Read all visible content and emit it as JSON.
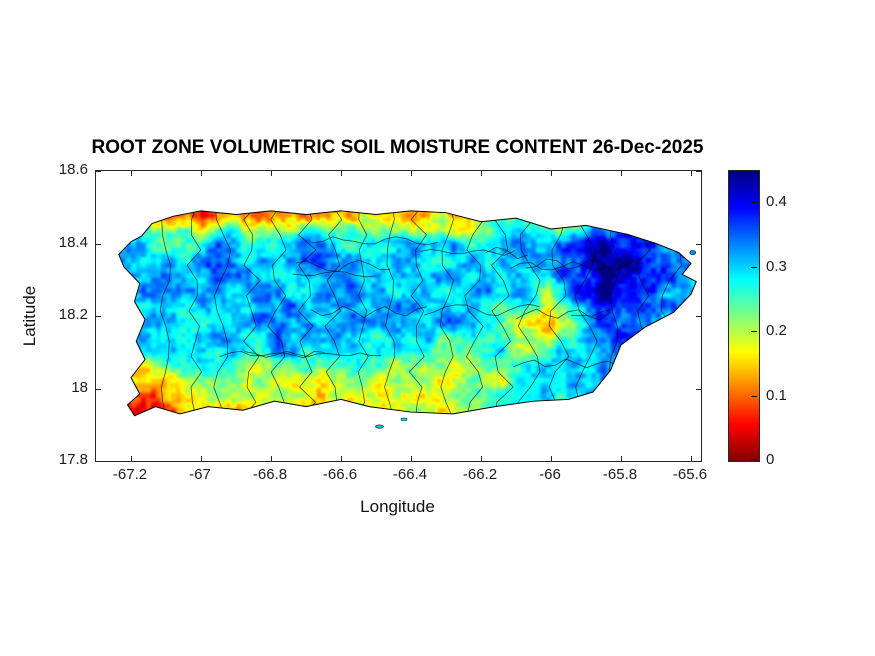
{
  "figure": {
    "title": "ROOT ZONE VOLUMETRIC SOIL MOISTURE CONTENT 26-Dec-2025",
    "xlabel": "Longitude",
    "ylabel": "Latitude",
    "background_color": "#ffffff",
    "axis_color": "#262626"
  },
  "axes": {
    "x_ticks": [
      -67.2,
      -67,
      -66.8,
      -66.6,
      -66.4,
      -66.2,
      -66,
      -65.8,
      -65.6
    ],
    "x_tick_labels": [
      "-67.2",
      "-67",
      "-66.8",
      "-66.6",
      "-66.4",
      "-66.2",
      "-66",
      "-65.8",
      "-65.6"
    ],
    "y_ticks": [
      18.6,
      18.4,
      18.2,
      18,
      17.8
    ],
    "y_tick_labels": [
      "18.6",
      "18.4",
      "18.2",
      "18",
      "17.8"
    ],
    "xlim": [
      -67.3,
      -65.57
    ],
    "ylim": [
      17.8,
      18.6
    ]
  },
  "colorbar": {
    "tick_values": [
      0,
      0.1,
      0.2,
      0.3,
      0.4
    ],
    "tick_labels": [
      "0",
      "0.1",
      "0.2",
      "0.3",
      "0.4"
    ],
    "vmin": 0,
    "vmax": 0.45,
    "colormap": "jet-reversed",
    "gradient_stops": [
      {
        "p": 0.0,
        "c": "#800000"
      },
      {
        "p": 0.125,
        "c": "#ff0000"
      },
      {
        "p": 0.375,
        "c": "#ffff00"
      },
      {
        "p": 0.625,
        "c": "#00ffff"
      },
      {
        "p": 0.875,
        "c": "#0000ff"
      },
      {
        "p": 1.0,
        "c": "#000080"
      }
    ]
  },
  "chart_data": {
    "type": "heatmap",
    "title": "ROOT ZONE VOLUMETRIC SOIL MOISTURE CONTENT 26-Dec-2025",
    "xlabel": "Longitude",
    "ylabel": "Latitude",
    "region": "Puerto Rico with municipality boundaries",
    "value_range": [
      0,
      0.45
    ],
    "xlim": [
      -67.3,
      -65.57
    ],
    "ylim": [
      17.8,
      18.6
    ],
    "grid": {
      "lon_start": -67.3,
      "lon_step": 0.076087,
      "lat_start": 18.55,
      "lat_step": -0.074444,
      "values": [
        [
          0.25,
          0.25,
          0.2,
          0.12,
          0.07,
          0.15,
          0.1,
          0.08,
          0.15,
          0.12,
          0.18,
          0.12,
          0.08,
          0.15,
          0.12,
          0.2,
          0.25,
          0.15,
          0.1,
          0.25,
          0.3,
          0.3,
          0.3,
          0.3
        ],
        [
          0.28,
          0.25,
          0.18,
          0.12,
          0.07,
          0.15,
          0.1,
          0.08,
          0.14,
          0.12,
          0.18,
          0.12,
          0.08,
          0.16,
          0.12,
          0.22,
          0.26,
          0.15,
          0.12,
          0.28,
          0.32,
          0.32,
          0.3,
          0.3
        ],
        [
          0.3,
          0.32,
          0.3,
          0.28,
          0.3,
          0.33,
          0.28,
          0.3,
          0.33,
          0.3,
          0.28,
          0.32,
          0.35,
          0.3,
          0.28,
          0.3,
          0.33,
          0.3,
          0.35,
          0.4,
          0.42,
          0.38,
          0.33,
          0.3
        ],
        [
          0.3,
          0.33,
          0.3,
          0.28,
          0.32,
          0.35,
          0.3,
          0.28,
          0.32,
          0.35,
          0.3,
          0.28,
          0.32,
          0.3,
          0.33,
          0.28,
          0.3,
          0.33,
          0.38,
          0.44,
          0.44,
          0.4,
          0.35,
          0.33
        ],
        [
          0.3,
          0.28,
          0.32,
          0.3,
          0.33,
          0.3,
          0.35,
          0.32,
          0.3,
          0.35,
          0.32,
          0.3,
          0.33,
          0.3,
          0.28,
          0.32,
          0.3,
          0.22,
          0.35,
          0.42,
          0.4,
          0.36,
          0.3,
          0.3
        ],
        [
          0.3,
          0.3,
          0.28,
          0.32,
          0.3,
          0.33,
          0.3,
          0.35,
          0.32,
          0.3,
          0.33,
          0.3,
          0.32,
          0.35,
          0.3,
          0.25,
          0.18,
          0.08,
          0.2,
          0.33,
          0.38,
          0.35,
          0.3,
          0.3
        ],
        [
          0.3,
          0.28,
          0.3,
          0.28,
          0.32,
          0.3,
          0.28,
          0.32,
          0.3,
          0.28,
          0.3,
          0.25,
          0.28,
          0.22,
          0.25,
          0.28,
          0.22,
          0.25,
          0.3,
          0.35,
          0.33,
          0.3,
          0.3,
          0.3
        ],
        [
          0.25,
          0.15,
          0.12,
          0.18,
          0.22,
          0.25,
          0.2,
          0.22,
          0.18,
          0.2,
          0.22,
          0.18,
          0.2,
          0.18,
          0.22,
          0.2,
          0.25,
          0.28,
          0.3,
          0.32,
          0.3,
          0.3,
          0.3,
          0.3
        ],
        [
          0.1,
          0.06,
          0.08,
          0.12,
          0.15,
          0.18,
          0.15,
          0.18,
          0.15,
          0.18,
          0.2,
          0.18,
          0.2,
          0.18,
          0.2,
          0.22,
          0.25,
          0.28,
          0.3,
          0.3,
          0.3,
          0.3,
          0.3,
          0.3
        ],
        [
          0.1,
          0.06,
          0.08,
          0.12,
          0.15,
          0.18,
          0.15,
          0.18,
          0.15,
          0.18,
          0.2,
          0.18,
          0.2,
          0.18,
          0.2,
          0.22,
          0.25,
          0.28,
          0.3,
          0.3,
          0.3,
          0.3,
          0.3,
          0.3
        ]
      ]
    },
    "island_outline": [
      [
        -67.2,
        18.405
      ],
      [
        -67.235,
        18.37
      ],
      [
        -67.22,
        18.335
      ],
      [
        -67.175,
        18.29
      ],
      [
        -67.19,
        18.24
      ],
      [
        -67.16,
        18.19
      ],
      [
        -67.185,
        18.13
      ],
      [
        -67.16,
        18.08
      ],
      [
        -67.2,
        18.03
      ],
      [
        -67.175,
        17.985
      ],
      [
        -67.21,
        17.955
      ],
      [
        -67.19,
        17.925
      ],
      [
        -67.13,
        17.95
      ],
      [
        -67.06,
        17.93
      ],
      [
        -66.98,
        17.95
      ],
      [
        -66.88,
        17.94
      ],
      [
        -66.79,
        17.965
      ],
      [
        -66.7,
        17.95
      ],
      [
        -66.6,
        17.97
      ],
      [
        -66.52,
        17.95
      ],
      [
        -66.4,
        17.935
      ],
      [
        -66.28,
        17.93
      ],
      [
        -66.16,
        17.95
      ],
      [
        -66.05,
        17.965
      ],
      [
        -65.95,
        17.97
      ],
      [
        -65.88,
        17.99
      ],
      [
        -65.83,
        18.05
      ],
      [
        -65.8,
        18.12
      ],
      [
        -65.73,
        18.17
      ],
      [
        -65.65,
        18.21
      ],
      [
        -65.6,
        18.26
      ],
      [
        -65.585,
        18.295
      ],
      [
        -65.625,
        18.315
      ],
      [
        -65.6,
        18.345
      ],
      [
        -65.635,
        18.375
      ],
      [
        -65.7,
        18.4
      ],
      [
        -65.78,
        18.425
      ],
      [
        -65.9,
        18.45
      ],
      [
        -66.0,
        18.44
      ],
      [
        -66.1,
        18.47
      ],
      [
        -66.2,
        18.46
      ],
      [
        -66.3,
        18.485
      ],
      [
        -66.4,
        18.49
      ],
      [
        -66.5,
        18.48
      ],
      [
        -66.6,
        18.49
      ],
      [
        -66.7,
        18.48
      ],
      [
        -66.8,
        18.49
      ],
      [
        -66.9,
        18.48
      ],
      [
        -67.0,
        18.49
      ],
      [
        -67.08,
        18.475
      ],
      [
        -67.14,
        18.455
      ],
      [
        -67.17,
        18.42
      ]
    ],
    "islets": [
      {
        "lon": -66.49,
        "lat": 17.895,
        "rx": 4,
        "ry": 1.6,
        "v": 0.3
      },
      {
        "lon": -66.42,
        "lat": 17.915,
        "rx": 3,
        "ry": 1.3,
        "v": 0.28
      },
      {
        "lon": -65.595,
        "lat": 18.375,
        "rx": 3,
        "ry": 2.0,
        "v": 0.33
      }
    ]
  }
}
